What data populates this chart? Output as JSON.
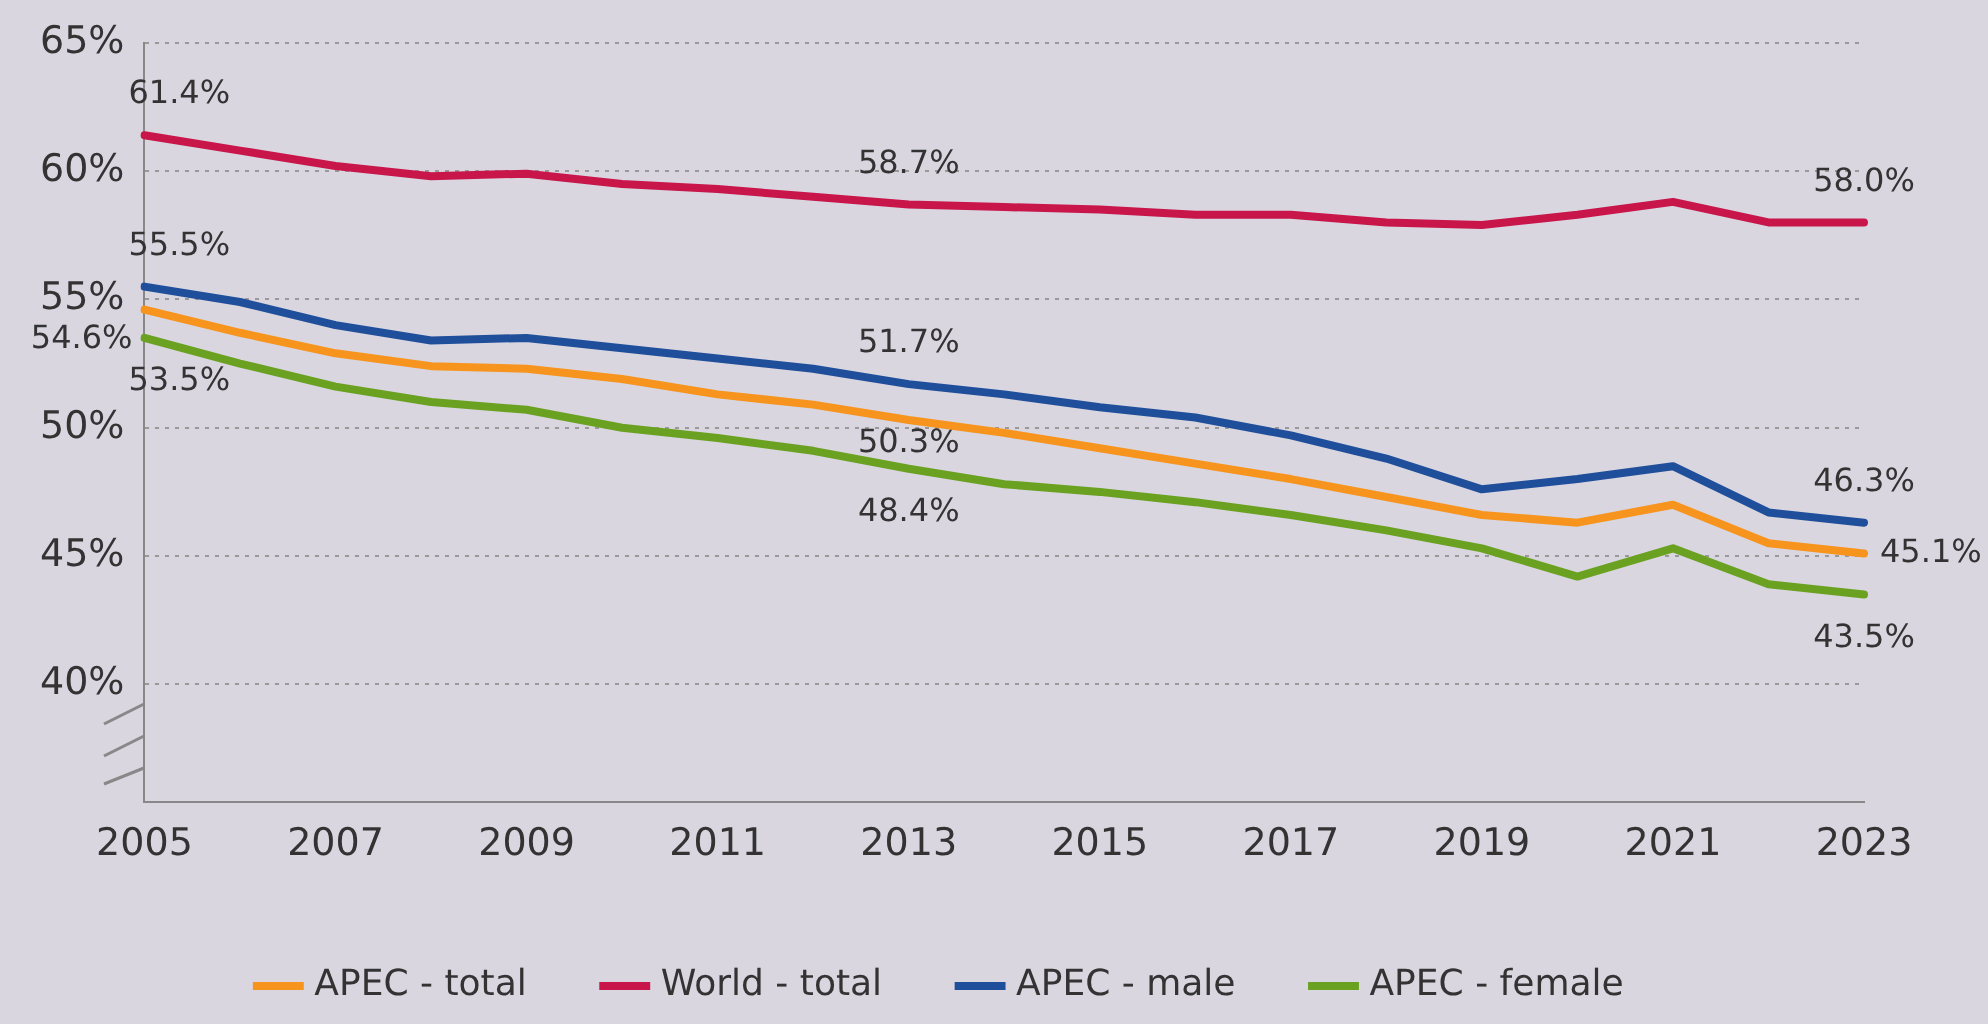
{
  "chart_data": {
    "type": "line",
    "categories": [
      "2005",
      null,
      "2007",
      null,
      "2009",
      null,
      "2011",
      null,
      "2013",
      null,
      "2015",
      null,
      "2017",
      null,
      "2019",
      null,
      "2021",
      null,
      "2023"
    ],
    "series": [
      {
        "name": "APEC - total",
        "color": "#f7941d",
        "values": [
          54.6,
          53.7,
          52.9,
          52.4,
          52.3,
          51.9,
          51.3,
          50.9,
          50.3,
          49.8,
          49.2,
          48.6,
          48.0,
          47.3,
          46.6,
          46.3,
          47.0,
          45.5,
          45.1
        ],
        "value_labels": [
          "54.6%",
          null,
          null,
          null,
          null,
          null,
          null,
          null,
          "50.3%",
          null,
          null,
          null,
          null,
          null,
          null,
          null,
          null,
          null,
          "45.1%"
        ]
      },
      {
        "name": "World - total",
        "color": "#c8164b",
        "values": [
          61.4,
          60.8,
          60.2,
          59.8,
          59.9,
          59.5,
          59.3,
          59.0,
          58.7,
          58.6,
          58.5,
          58.3,
          58.3,
          58.0,
          57.9,
          58.3,
          58.8,
          58.0,
          58.0
        ],
        "value_labels": [
          "61.4%",
          null,
          null,
          null,
          null,
          null,
          null,
          null,
          "58.7%",
          null,
          null,
          null,
          null,
          null,
          null,
          null,
          null,
          null,
          "58.0%"
        ]
      },
      {
        "name": "APEC - male",
        "color": "#1f4e9a",
        "values": [
          55.5,
          54.9,
          54.0,
          53.4,
          53.5,
          53.1,
          52.7,
          52.3,
          51.7,
          51.3,
          50.8,
          50.4,
          49.7,
          48.8,
          47.6,
          48.0,
          48.5,
          46.7,
          46.3
        ],
        "value_labels": [
          "55.5%",
          null,
          null,
          null,
          null,
          null,
          null,
          null,
          "51.7%",
          null,
          null,
          null,
          null,
          null,
          null,
          null,
          null,
          null,
          "46.3%"
        ]
      },
      {
        "name": "APEC - female",
        "color": "#6aa121",
        "values": [
          53.5,
          52.5,
          51.6,
          51.0,
          50.7,
          50.0,
          49.6,
          49.1,
          48.4,
          47.8,
          47.5,
          47.1,
          46.6,
          46.0,
          45.3,
          44.2,
          45.3,
          43.9,
          43.5
        ],
        "value_labels": [
          "53.5%",
          null,
          null,
          null,
          null,
          null,
          null,
          null,
          "48.4%",
          null,
          null,
          null,
          null,
          null,
          null,
          null,
          null,
          null,
          "43.5%"
        ]
      }
    ],
    "ylim": [
      35.4,
      65
    ],
    "yticks": [
      {
        "value": 40,
        "label": "40%"
      },
      {
        "value": 45,
        "label": "45%"
      },
      {
        "value": 50,
        "label": "50%"
      },
      {
        "value": 55,
        "label": "55%"
      },
      {
        "value": 60,
        "label": "60%"
      },
      {
        "value": 65,
        "label": "65%"
      }
    ],
    "grid": "y",
    "legend": "bottom",
    "marker": "none",
    "line_style": "solid"
  }
}
